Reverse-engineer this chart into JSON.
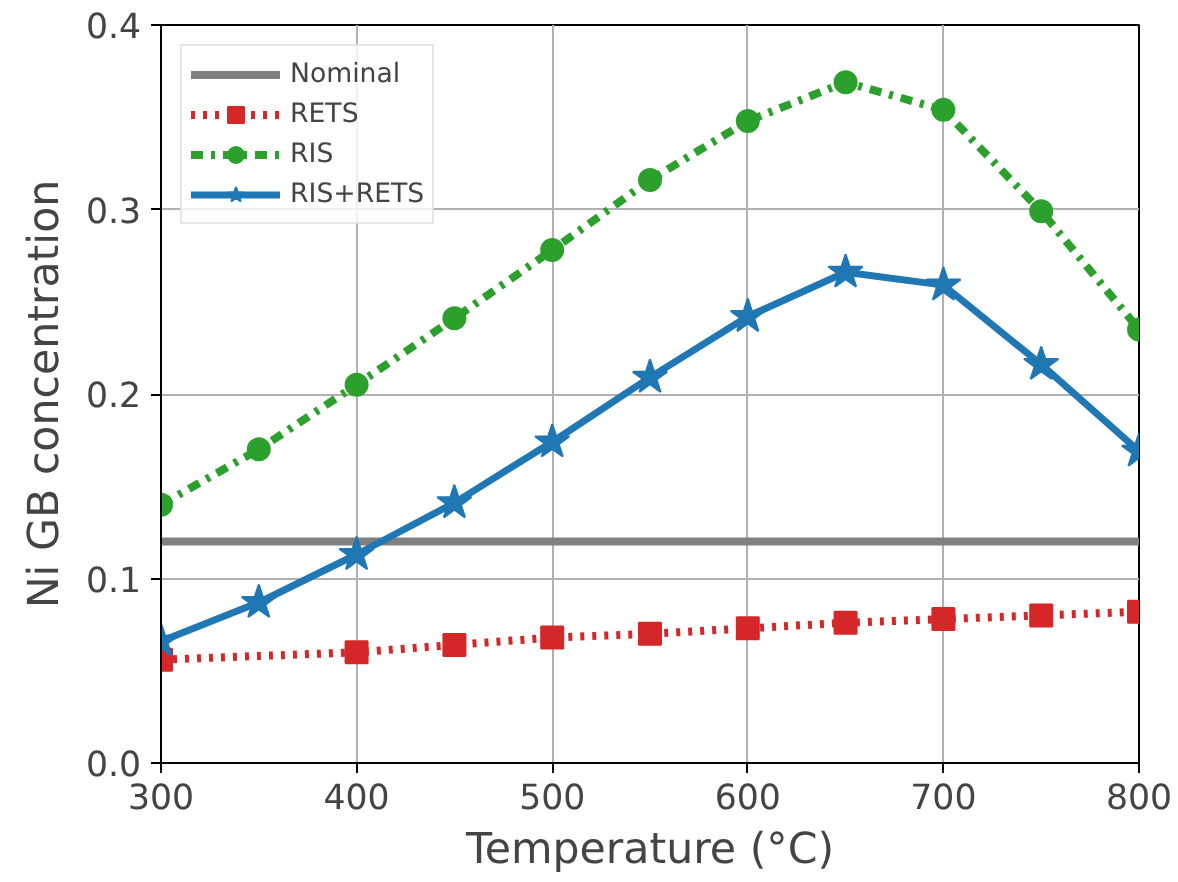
{
  "chart_data": {
    "type": "line",
    "xlabel": "Temperature (°C)",
    "ylabel": "Ni GB concentration",
    "x": [
      300,
      350,
      400,
      450,
      500,
      550,
      600,
      650,
      700,
      750,
      800
    ],
    "xlim": [
      300,
      800
    ],
    "xticks": [
      300,
      400,
      500,
      600,
      700,
      800
    ],
    "ylim": [
      0.0,
      0.4
    ],
    "yticks": [
      {
        "value": 0,
        "label": "0.0"
      },
      0.1,
      0.2,
      0.3,
      0.4
    ],
    "grid": true,
    "legend": "top left",
    "series": [
      {
        "name": "Nominal",
        "color": "#808080",
        "x": [
          300,
          800
        ],
        "values": [
          0.12,
          0.12
        ],
        "marker": "none",
        "line_style": "solid"
      },
      {
        "name": "RETS",
        "color": "#d62728",
        "x": [
          300,
          400,
          450,
          500,
          550,
          600,
          650,
          700,
          750,
          800
        ],
        "values": [
          0.056,
          0.06,
          0.064,
          0.068,
          0.07,
          0.073,
          0.076,
          0.078,
          0.08,
          0.082
        ],
        "marker": "square",
        "line_style": "dotted"
      },
      {
        "name": "RIS",
        "color": "#2ca02c",
        "values": [
          0.14,
          0.17,
          0.205,
          0.241,
          0.278,
          0.316,
          0.348,
          0.369,
          0.354,
          0.299,
          0.235
        ],
        "marker": "circle",
        "line_style": "dashdot"
      },
      {
        "name": "RIS+RETS",
        "color": "#1f77b4",
        "values": [
          0.066,
          0.087,
          0.113,
          0.141,
          0.174,
          0.209,
          0.242,
          0.266,
          0.259,
          0.216,
          0.169
        ],
        "marker": "star",
        "line_style": "solid"
      }
    ]
  }
}
